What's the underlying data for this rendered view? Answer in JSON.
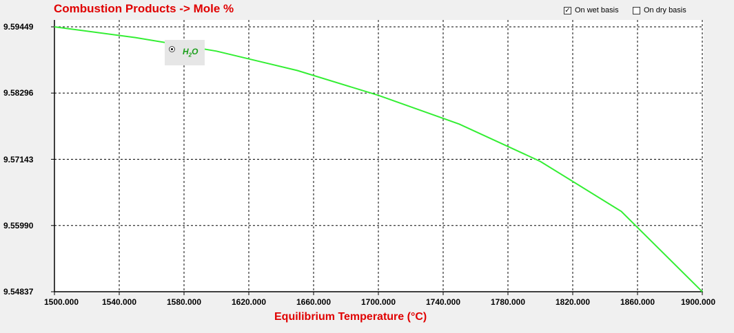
{
  "header": {
    "title": "Combustion Products -> Mole %",
    "wet_basis": {
      "label": "On wet basis",
      "checked": true
    },
    "dry_basis": {
      "label": "On dry basis",
      "checked": false
    }
  },
  "legend": {
    "prefix": "H",
    "subscript": "2",
    "suffix": "O",
    "color": "#33ee33"
  },
  "chart_data": {
    "type": "line",
    "xlabel": "Equilibrium Temperature (°C)",
    "x_ticks": [
      "1500.000",
      "1540.000",
      "1580.000",
      "1620.000",
      "1660.000",
      "1700.000",
      "1740.000",
      "1780.000",
      "1820.000",
      "1860.000",
      "1900.000"
    ],
    "y_ticks": [
      "9.59449",
      "9.58296",
      "9.57143",
      "9.55990",
      "9.54837"
    ],
    "xlim": [
      1500,
      1900
    ],
    "ylim": [
      9.54837,
      9.59449
    ],
    "grid": true,
    "series": [
      {
        "name": "H2O",
        "color": "#33ee33",
        "x": [
          1500,
          1550,
          1600,
          1650,
          1700,
          1750,
          1800,
          1850,
          1900
        ],
        "y": [
          9.59449,
          9.59262,
          9.59026,
          9.58688,
          9.58256,
          9.57755,
          9.57106,
          9.56235,
          9.54837
        ]
      }
    ]
  }
}
